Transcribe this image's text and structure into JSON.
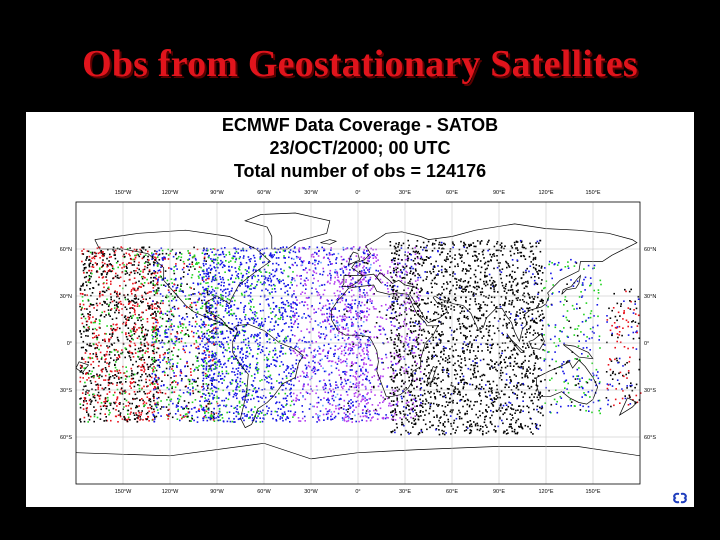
{
  "slide": {
    "title": "Obs from Geostationary Satellites"
  },
  "header": {
    "line1": "ECMWF Data Coverage  - SATOB",
    "line2": "23/OCT/2000; 00 UTC",
    "line3": "Total number of obs = 124176"
  },
  "map": {
    "lon_labels": [
      "150°W",
      "120°W",
      "90°W",
      "60°W",
      "30°W",
      "0°",
      "30°E",
      "60°E",
      "90°E",
      "120°E",
      "150°E"
    ],
    "lat_labels": [
      "60°N",
      "30°N",
      "0°",
      "30°S",
      "60°S"
    ],
    "point_colors": {
      "black": "#000000",
      "red": "#e8101a",
      "green": "#1ed21e",
      "blue": "#1414e6",
      "magenta": "#b23cf0",
      "light_blue": "#6aa6ff"
    }
  }
}
